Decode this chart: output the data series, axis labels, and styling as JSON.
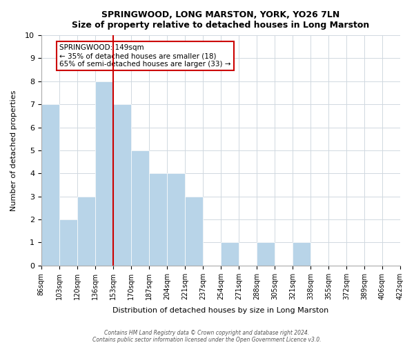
{
  "title": "SPRINGWOOD, LONG MARSTON, YORK, YO26 7LN",
  "subtitle": "Size of property relative to detached houses in Long Marston",
  "xlabel": "Distribution of detached houses by size in Long Marston",
  "ylabel": "Number of detached properties",
  "bin_labels": [
    "86sqm",
    "103sqm",
    "120sqm",
    "136sqm",
    "153sqm",
    "170sqm",
    "187sqm",
    "204sqm",
    "221sqm",
    "237sqm",
    "254sqm",
    "271sqm",
    "288sqm",
    "305sqm",
    "321sqm",
    "338sqm",
    "355sqm",
    "372sqm",
    "389sqm",
    "406sqm",
    "422sqm"
  ],
  "bar_values": [
    7,
    2,
    3,
    8,
    7,
    5,
    4,
    4,
    3,
    0,
    1,
    0,
    1,
    0,
    1,
    0,
    0,
    0,
    0,
    0
  ],
  "bar_color": "#b8d4e8",
  "bar_edge_color": "#ffffff",
  "grid_color": "#d0d8e0",
  "annotation_box_edge": "#cc0000",
  "annotation_line_color": "#cc0000",
  "annotation_title": "SPRINGWOOD: 149sqm",
  "annotation_line1": "← 35% of detached houses are smaller (18)",
  "annotation_line2": "65% of semi-detached houses are larger (33) →",
  "property_line_x": 4,
  "ylim": [
    0,
    10
  ],
  "footer1": "Contains HM Land Registry data © Crown copyright and database right 2024.",
  "footer2": "Contains public sector information licensed under the Open Government Licence v3.0."
}
